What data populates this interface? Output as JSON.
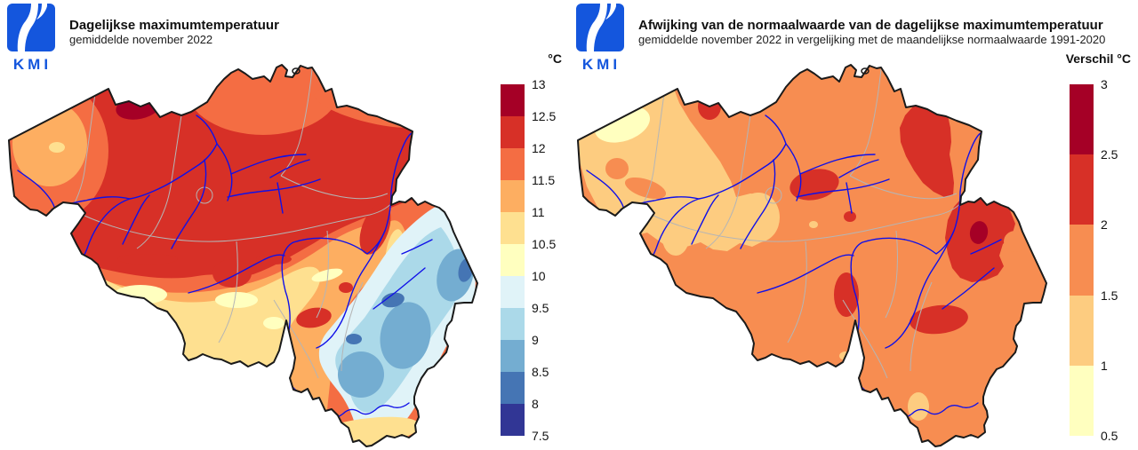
{
  "logo": {
    "text": "KMI",
    "color": "#1456dd"
  },
  "panels": [
    {
      "title": "Dagelijkse maximumtemperatuur",
      "subtitle": "gemiddelde november 2022",
      "legend": {
        "unit_label": "°C",
        "ticks": [
          "13",
          "12.5",
          "12",
          "11.5",
          "11",
          "10.5",
          "10",
          "9.5",
          "9",
          "8.5",
          "8",
          "7.5"
        ],
        "colors": [
          "#a50026",
          "#d73027",
          "#f46d43",
          "#fdae61",
          "#fee090",
          "#ffffbf",
          "#e0f3f8",
          "#abd9e9",
          "#74add1",
          "#4575b4",
          "#313695"
        ]
      }
    },
    {
      "title": "Afwijking van de normaalwaarde van de dagelijkse maximumtemperatuur",
      "subtitle": "gemiddelde november 2022 in vergelijking met de maandelijkse normaalwaarde 1991-2020",
      "legend": {
        "unit_label": "Verschil °C",
        "ticks": [
          "3",
          "2.5",
          "2",
          "1.5",
          "1",
          "0.5"
        ],
        "colors": [
          "#a50026",
          "#d73027",
          "#f78d51",
          "#fdcc80",
          "#ffffbf"
        ]
      }
    }
  ],
  "map": {
    "region": "België",
    "border_color": "#1a1a1a",
    "river_color": "#1010e8",
    "province_border_color": "#b5b5b5"
  },
  "chart_data": [
    {
      "type": "heatmap",
      "subtype": "filled-contour-map of Belgium",
      "title": "Dagelijkse maximumtemperatuur",
      "subtitle": "gemiddelde november 2022",
      "unit": "°C",
      "scale_ticks": [
        13,
        12.5,
        12,
        11.5,
        11,
        10.5,
        10,
        9.5,
        9,
        8.5,
        8,
        7.5
      ],
      "palette_top_to_bottom": [
        "#a50026",
        "#d73027",
        "#f46d43",
        "#fdae61",
        "#fee090",
        "#ffffbf",
        "#e0f3f8",
        "#abd9e9",
        "#74add1",
        "#4575b4",
        "#313695"
      ],
      "legend_position": "right",
      "spatial_pattern": {
        "noorden en centrum (Vlaanderen, Brabant)": "12 tot 12.5 °C",
        "lokale maxima ten noorden van Gent/Antwerpen": "12.5 tot 13 °C",
        "westkust en Kempenrand": "11.5 tot 12 °C",
        "middenband (Henegouwen-Namen-Condroz)": "10.5 tot 11.5 °C",
        "Ardennen / Hoge Venen (zuidoosten)": "8 tot 9.5 °C",
        "koudste kernen nabij oostgrens": "7.5 tot 8.5 °C",
        "uiterste zuiden (Gaume)": "10.5 tot 11 °C"
      }
    },
    {
      "type": "heatmap",
      "subtype": "filled-contour-map of Belgium",
      "title": "Afwijking van de normaalwaarde van de dagelijkse maximumtemperatuur",
      "subtitle": "gemiddelde november 2022 in vergelijking met de maandelijkse normaalwaarde 1991-2020",
      "unit": "Verschil °C",
      "scale_ticks": [
        3,
        2.5,
        2,
        1.5,
        1,
        0.5
      ],
      "palette_top_to_bottom": [
        "#a50026",
        "#d73027",
        "#f78d51",
        "#fdcc80",
        "#ffffbf"
      ],
      "legend_position": "right",
      "spatial_pattern": {
        "West-Vlaanderen / westen": "0.5 tot 1.5 °C",
        "kustpolders (lichtste afwijking)": "0.5 tot 1 °C",
        "centrum van het land": "1.5 tot 2 °C",
        "Limburg en regio Luik-Verviers": "2 tot 2.5 °C",
        "maximum nabij Verviers": "2.5 tot 3 °C",
        "lokale rode kernen (Brabant, Famenne, zuidoosten)": "2 tot 2.5 °C"
      }
    }
  ]
}
